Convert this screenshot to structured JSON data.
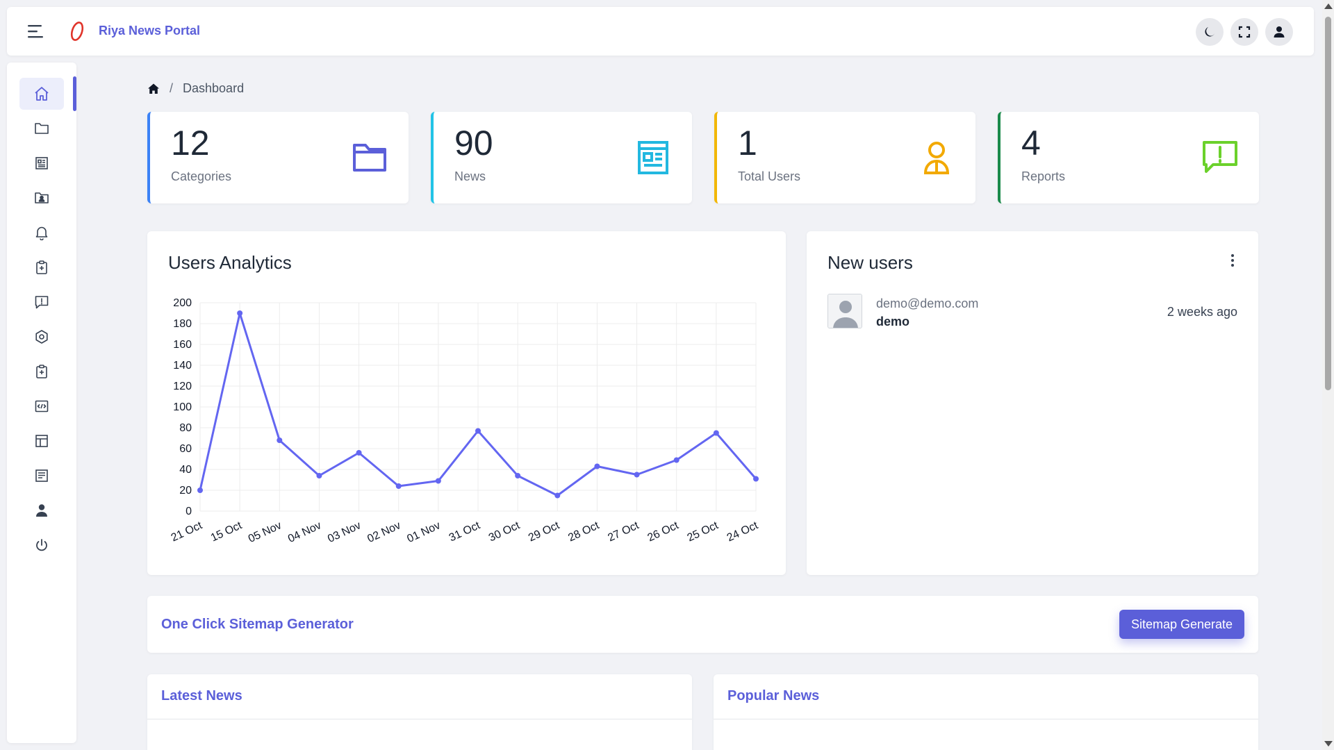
{
  "app": {
    "name": "Riya News Portal"
  },
  "breadcrumb": {
    "current": "Dashboard"
  },
  "stats": [
    {
      "value": "12",
      "label": "Categories",
      "color": "#3b82f6",
      "icon": "folder-icon",
      "icon_color": "#5b5fd9"
    },
    {
      "value": "90",
      "label": "News",
      "color": "#22c3e6",
      "icon": "newspaper-icon",
      "icon_color": "#22b8e0"
    },
    {
      "value": "1",
      "label": "Total Users",
      "color": "#f2b705",
      "icon": "user-icon",
      "icon_color": "#f2a900"
    },
    {
      "value": "4",
      "label": "Reports",
      "color": "#1a8a4a",
      "icon": "report-icon",
      "icon_color": "#6bd12b"
    }
  ],
  "analytics": {
    "title": "Users Analytics"
  },
  "chart_data": {
    "type": "line",
    "categories": [
      "21 Oct",
      "15 Oct",
      "05 Nov",
      "04 Nov",
      "03 Nov",
      "02 Nov",
      "01 Nov",
      "31 Oct",
      "30 Oct",
      "29 Oct",
      "28 Oct",
      "27 Oct",
      "26 Oct",
      "25 Oct",
      "24 Oct"
    ],
    "values": [
      20,
      190,
      68,
      34,
      56,
      24,
      29,
      77,
      34,
      15,
      43,
      35,
      49,
      75,
      31
    ],
    "yticks": [
      0,
      20,
      40,
      60,
      80,
      100,
      120,
      140,
      160,
      180,
      200
    ],
    "ylim": [
      0,
      200
    ],
    "color": "#6366f1",
    "grid": true
  },
  "new_users": {
    "title": "New users",
    "items": [
      {
        "email": "demo@demo.com",
        "name": "demo",
        "time": "2 weeks ago"
      }
    ]
  },
  "sitemap": {
    "title": "One Click Sitemap Generator",
    "button": "Sitemap Generate"
  },
  "latest_news": {
    "title": "Latest News"
  },
  "popular_news": {
    "title": "Popular News"
  },
  "sidebar": {
    "items": [
      {
        "icon": "home-icon"
      },
      {
        "icon": "folder-icon"
      },
      {
        "icon": "newspaper-icon"
      },
      {
        "icon": "contact-folder-icon"
      },
      {
        "icon": "bell-icon"
      },
      {
        "icon": "clipboard-plus-icon"
      },
      {
        "icon": "report-icon"
      },
      {
        "icon": "settings-icon"
      },
      {
        "icon": "clipboard-plus-icon"
      },
      {
        "icon": "code-icon"
      },
      {
        "icon": "layout-icon"
      },
      {
        "icon": "news-list-icon"
      },
      {
        "icon": "user-icon"
      },
      {
        "icon": "power-icon"
      }
    ]
  }
}
